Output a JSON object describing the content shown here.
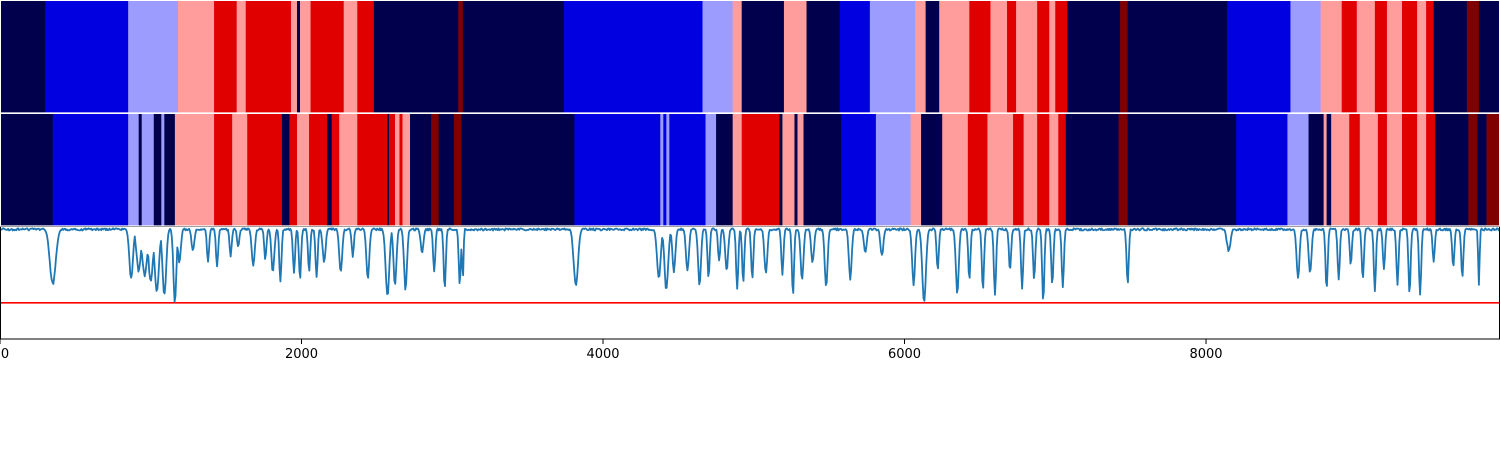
{
  "chart_data": {
    "type": "heatmap",
    "x_range": [
      0,
      9950
    ],
    "x_ticks": [
      {
        "value": 0,
        "label": "0"
      },
      {
        "value": 2000,
        "label": "2000"
      },
      {
        "value": 4000,
        "label": "4000"
      },
      {
        "value": 6000,
        "label": "6000"
      },
      {
        "value": 8000,
        "label": "8000"
      }
    ],
    "state_colors": {
      "0": "#00004c",
      "1": "#0000e0",
      "2": "#9c9cff",
      "3": "#ff9c9c",
      "4": "#e00000",
      "5": "#800000"
    },
    "tracks": [
      {
        "segments": [
          [
            0,
            300,
            0
          ],
          [
            300,
            850,
            1
          ],
          [
            850,
            1180,
            2
          ],
          [
            1180,
            1420,
            3
          ],
          [
            1420,
            1570,
            4
          ],
          [
            1570,
            1630,
            3
          ],
          [
            1630,
            1930,
            4
          ],
          [
            1930,
            1970,
            3
          ],
          [
            1970,
            1990,
            0
          ],
          [
            1990,
            2060,
            3
          ],
          [
            2060,
            2280,
            4
          ],
          [
            2280,
            2370,
            3
          ],
          [
            2370,
            2480,
            4
          ],
          [
            2480,
            3040,
            0
          ],
          [
            3040,
            3070,
            5
          ],
          [
            3070,
            3740,
            0
          ],
          [
            3740,
            4660,
            1
          ],
          [
            4660,
            4860,
            2
          ],
          [
            4860,
            4920,
            3
          ],
          [
            4920,
            5200,
            0
          ],
          [
            5200,
            5350,
            3
          ],
          [
            5350,
            5570,
            0
          ],
          [
            5570,
            5770,
            1
          ],
          [
            5770,
            6070,
            2
          ],
          [
            6070,
            6140,
            3
          ],
          [
            6140,
            6230,
            0
          ],
          [
            6230,
            6430,
            3
          ],
          [
            6430,
            6570,
            4
          ],
          [
            6570,
            6680,
            3
          ],
          [
            6680,
            6740,
            4
          ],
          [
            6740,
            6880,
            3
          ],
          [
            6880,
            6960,
            4
          ],
          [
            6960,
            7000,
            3
          ],
          [
            7000,
            7080,
            4
          ],
          [
            7080,
            7430,
            0
          ],
          [
            7430,
            7480,
            5
          ],
          [
            7480,
            8140,
            0
          ],
          [
            8140,
            8560,
            1
          ],
          [
            8560,
            8760,
            2
          ],
          [
            8760,
            8900,
            3
          ],
          [
            8900,
            9000,
            4
          ],
          [
            9000,
            9120,
            3
          ],
          [
            9120,
            9200,
            4
          ],
          [
            9200,
            9300,
            3
          ],
          [
            9300,
            9400,
            4
          ],
          [
            9400,
            9460,
            3
          ],
          [
            9460,
            9510,
            4
          ],
          [
            9510,
            9730,
            0
          ],
          [
            9730,
            9810,
            5
          ],
          [
            9810,
            9950,
            0
          ]
        ]
      },
      {
        "segments": [
          [
            0,
            350,
            0
          ],
          [
            350,
            850,
            1
          ],
          [
            850,
            920,
            2
          ],
          [
            920,
            940,
            0
          ],
          [
            940,
            1020,
            2
          ],
          [
            1020,
            1070,
            0
          ],
          [
            1070,
            1090,
            2
          ],
          [
            1090,
            1160,
            0
          ],
          [
            1160,
            1420,
            3
          ],
          [
            1420,
            1540,
            4
          ],
          [
            1540,
            1640,
            3
          ],
          [
            1640,
            1870,
            4
          ],
          [
            1870,
            1920,
            0
          ],
          [
            1920,
            1970,
            4
          ],
          [
            1970,
            2050,
            3
          ],
          [
            2050,
            2170,
            4
          ],
          [
            2170,
            2200,
            0
          ],
          [
            2200,
            2250,
            4
          ],
          [
            2250,
            2370,
            3
          ],
          [
            2370,
            2570,
            4
          ],
          [
            2570,
            2580,
            0
          ],
          [
            2580,
            2620,
            4
          ],
          [
            2620,
            2650,
            3
          ],
          [
            2650,
            2670,
            4
          ],
          [
            2670,
            2720,
            3
          ],
          [
            2720,
            2860,
            0
          ],
          [
            2860,
            2910,
            5
          ],
          [
            2910,
            3010,
            0
          ],
          [
            3010,
            3060,
            5
          ],
          [
            3060,
            3810,
            0
          ],
          [
            3810,
            4380,
            1
          ],
          [
            4380,
            4400,
            2
          ],
          [
            4400,
            4420,
            1
          ],
          [
            4420,
            4440,
            2
          ],
          [
            4440,
            4680,
            1
          ],
          [
            4680,
            4750,
            2
          ],
          [
            4750,
            4860,
            0
          ],
          [
            4860,
            4920,
            3
          ],
          [
            4920,
            5170,
            4
          ],
          [
            5170,
            5190,
            0
          ],
          [
            5190,
            5270,
            3
          ],
          [
            5270,
            5290,
            0
          ],
          [
            5290,
            5330,
            3
          ],
          [
            5330,
            5580,
            0
          ],
          [
            5580,
            5810,
            1
          ],
          [
            5810,
            6040,
            2
          ],
          [
            6040,
            6110,
            3
          ],
          [
            6110,
            6250,
            0
          ],
          [
            6250,
            6420,
            3
          ],
          [
            6420,
            6550,
            4
          ],
          [
            6550,
            6720,
            3
          ],
          [
            6720,
            6790,
            4
          ],
          [
            6790,
            6880,
            3
          ],
          [
            6880,
            6960,
            4
          ],
          [
            6960,
            7020,
            3
          ],
          [
            7020,
            7070,
            4
          ],
          [
            7070,
            7420,
            0
          ],
          [
            7420,
            7480,
            5
          ],
          [
            7480,
            8200,
            0
          ],
          [
            8200,
            8540,
            1
          ],
          [
            8540,
            8680,
            2
          ],
          [
            8680,
            8780,
            0
          ],
          [
            8780,
            8800,
            3
          ],
          [
            8800,
            8830,
            0
          ],
          [
            8830,
            8950,
            3
          ],
          [
            8950,
            9020,
            4
          ],
          [
            9020,
            9140,
            3
          ],
          [
            9140,
            9200,
            4
          ],
          [
            9200,
            9300,
            3
          ],
          [
            9300,
            9400,
            4
          ],
          [
            9400,
            9460,
            3
          ],
          [
            9460,
            9520,
            4
          ],
          [
            9520,
            9740,
            0
          ],
          [
            9740,
            9800,
            5
          ],
          [
            9800,
            9860,
            0
          ],
          [
            9860,
            9950,
            5
          ]
        ]
      }
    ],
    "line_panel": {
      "y_range": [
        0,
        1
      ],
      "threshold": 0.32,
      "threshold_color": "#ff0000",
      "line_color": "#1f77b4",
      "baseline": 0.98,
      "dips": [
        [
          350,
          0.5,
          40
        ],
        [
          870,
          0.55,
          25
        ],
        [
          920,
          0.62,
          30
        ],
        [
          960,
          0.58,
          35
        ],
        [
          1000,
          0.52,
          30
        ],
        [
          1040,
          0.45,
          30
        ],
        [
          1090,
          0.4,
          25
        ],
        [
          1160,
          0.34,
          20
        ],
        [
          1190,
          0.7,
          20
        ],
        [
          1280,
          0.8,
          20
        ],
        [
          1380,
          0.7,
          15
        ],
        [
          1440,
          0.65,
          15
        ],
        [
          1530,
          0.75,
          15
        ],
        [
          1580,
          0.82,
          15
        ],
        [
          1680,
          0.65,
          20
        ],
        [
          1760,
          0.72,
          15
        ],
        [
          1810,
          0.6,
          20
        ],
        [
          1860,
          0.52,
          15
        ],
        [
          1950,
          0.6,
          15
        ],
        [
          1990,
          0.55,
          15
        ],
        [
          2050,
          0.62,
          15
        ],
        [
          2100,
          0.55,
          15
        ],
        [
          2150,
          0.7,
          20
        ],
        [
          2260,
          0.6,
          20
        ],
        [
          2340,
          0.75,
          15
        ],
        [
          2440,
          0.55,
          20
        ],
        [
          2570,
          0.4,
          25
        ],
        [
          2620,
          0.5,
          20
        ],
        [
          2690,
          0.45,
          20
        ],
        [
          2800,
          0.78,
          20
        ],
        [
          2880,
          0.6,
          15
        ],
        [
          2950,
          0.45,
          15
        ],
        [
          3050,
          0.5,
          15
        ],
        [
          3070,
          0.55,
          10
        ],
        [
          3820,
          0.5,
          30
        ],
        [
          4370,
          0.55,
          25
        ],
        [
          4420,
          0.45,
          25
        ],
        [
          4470,
          0.6,
          20
        ],
        [
          4560,
          0.62,
          20
        ],
        [
          4640,
          0.5,
          20
        ],
        [
          4700,
          0.55,
          15
        ],
        [
          4770,
          0.7,
          15
        ],
        [
          4820,
          0.62,
          20
        ],
        [
          4890,
          0.45,
          15
        ],
        [
          4930,
          0.52,
          15
        ],
        [
          4990,
          0.55,
          15
        ],
        [
          5080,
          0.6,
          20
        ],
        [
          5190,
          0.58,
          15
        ],
        [
          5260,
          0.4,
          15
        ],
        [
          5320,
          0.55,
          20
        ],
        [
          5390,
          0.7,
          20
        ],
        [
          5480,
          0.48,
          20
        ],
        [
          5640,
          0.55,
          20
        ],
        [
          5740,
          0.78,
          20
        ],
        [
          5850,
          0.75,
          20
        ],
        [
          6060,
          0.5,
          20
        ],
        [
          6130,
          0.35,
          25
        ],
        [
          6220,
          0.62,
          15
        ],
        [
          6350,
          0.42,
          20
        ],
        [
          6430,
          0.55,
          15
        ],
        [
          6520,
          0.45,
          15
        ],
        [
          6600,
          0.4,
          15
        ],
        [
          6700,
          0.62,
          15
        ],
        [
          6780,
          0.45,
          15
        ],
        [
          6860,
          0.55,
          15
        ],
        [
          6920,
          0.35,
          15
        ],
        [
          6980,
          0.5,
          15
        ],
        [
          7050,
          0.48,
          15
        ],
        [
          7480,
          0.5,
          15
        ],
        [
          8150,
          0.8,
          25
        ],
        [
          8610,
          0.55,
          20
        ],
        [
          8690,
          0.6,
          20
        ],
        [
          8800,
          0.45,
          15
        ],
        [
          8880,
          0.55,
          15
        ],
        [
          8960,
          0.68,
          15
        ],
        [
          9040,
          0.55,
          15
        ],
        [
          9120,
          0.45,
          15
        ],
        [
          9180,
          0.62,
          15
        ],
        [
          9270,
          0.5,
          15
        ],
        [
          9350,
          0.42,
          15
        ],
        [
          9420,
          0.4,
          15
        ],
        [
          9510,
          0.7,
          15
        ],
        [
          9640,
          0.65,
          15
        ],
        [
          9700,
          0.55,
          15
        ],
        [
          9810,
          0.5,
          10
        ]
      ]
    }
  }
}
